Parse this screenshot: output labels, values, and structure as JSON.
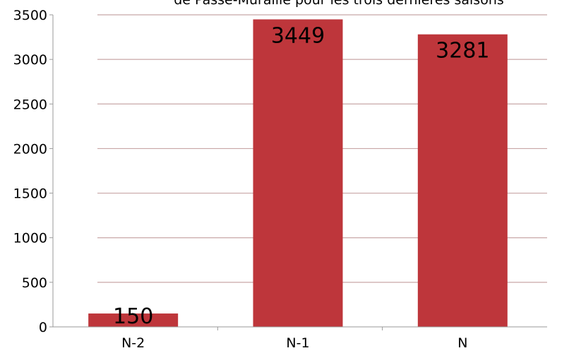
{
  "chart_data": {
    "type": "bar",
    "title": "de Passe-Muraille pour les trois dernières saisons",
    "categories": [
      "N-2",
      "N-1",
      "N"
    ],
    "values": [
      150,
      3449,
      3281
    ],
    "data_labels": [
      "150",
      "3449",
      "3281"
    ],
    "ylim": [
      0,
      3500
    ],
    "yticks": [
      0,
      500,
      1000,
      1500,
      2000,
      2500,
      3000,
      3500
    ],
    "ytick_labels": [
      "0",
      "500",
      "1000",
      "1500",
      "2000",
      "2500",
      "3000",
      "3500"
    ],
    "xlabel": "",
    "ylabel": "",
    "grid": true,
    "colors": {
      "bar": "#be363b",
      "grid": "#c8a7a7",
      "axis": "#9a9a9a",
      "text": "#000000"
    }
  }
}
